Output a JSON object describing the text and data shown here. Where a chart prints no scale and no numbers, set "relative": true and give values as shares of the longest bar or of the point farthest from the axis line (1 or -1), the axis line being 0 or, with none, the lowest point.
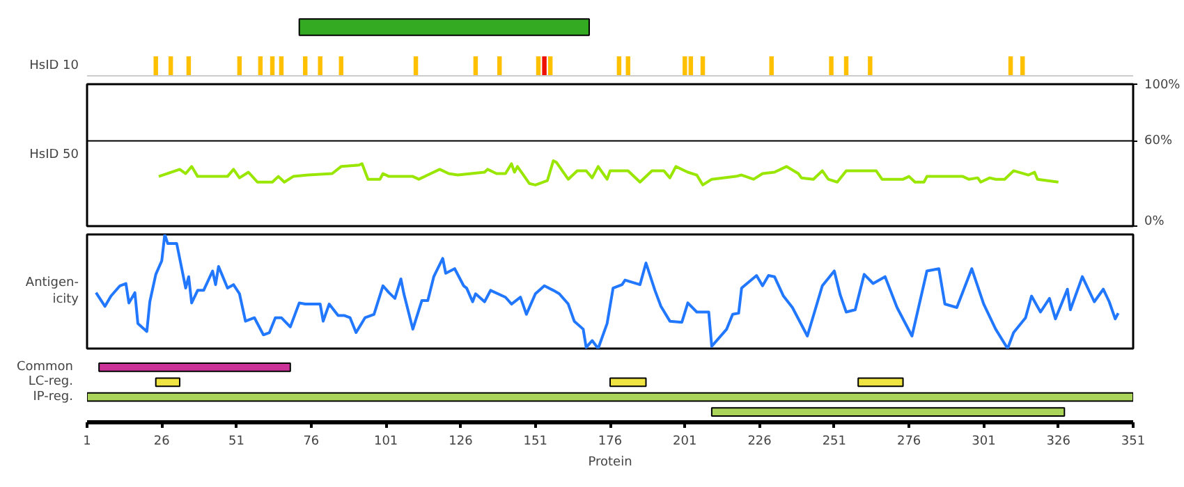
{
  "chart_data": [
    {
      "type": "bar",
      "orientation": "horizontal",
      "categories": [
        null
      ],
      "base": [
        72
      ],
      "values": [
        97
      ],
      "color": "#33aa22",
      "xlim": [
        1,
        351
      ],
      "tick_labels": false
    },
    {
      "type": "bar",
      "ylabel": "HsID 10",
      "relative": true,
      "xlim": [
        1,
        351
      ],
      "tick_labels": false,
      "x": [
        24,
        29,
        35,
        52,
        59,
        63,
        66,
        74,
        79,
        86,
        111,
        131,
        139,
        152,
        154,
        156,
        179,
        182,
        201,
        203,
        207,
        230,
        250,
        255,
        263,
        310,
        314
      ],
      "values": [
        1,
        1,
        1,
        1,
        1,
        1,
        1,
        1,
        1,
        1,
        1,
        1,
        1,
        1,
        1,
        1,
        1,
        1,
        1,
        1,
        1,
        1,
        1,
        1,
        1,
        1,
        1
      ],
      "colors": [
        "#ffc000",
        "#ffc000",
        "#ffc000",
        "#ffc000",
        "#ffc000",
        "#ffc000",
        "#ffc000",
        "#ffc000",
        "#ffc000",
        "#ffc000",
        "#ffc000",
        "#ffc000",
        "#ffc000",
        "#ffc000",
        "#ee1100",
        "#ffc000",
        "#ffc000",
        "#ffc000",
        "#ffc000",
        "#ffc000",
        "#ffc000",
        "#ffc000",
        "#ffc000",
        "#ffc000",
        "#ffc000",
        "#ffc000",
        "#ffc000"
      ]
    },
    {
      "type": "line",
      "ylabel": "HsID 50",
      "xlim": [
        1,
        351
      ],
      "ylim": [
        0,
        100
      ],
      "yticks": [
        {
          "value": 0,
          "label": "0%"
        },
        {
          "value": 60,
          "label": "60%"
        },
        {
          "value": 100,
          "label": "100%"
        }
      ],
      "tick_labels": "y",
      "ref_lines": [
        {
          "axis": "y",
          "value": 60,
          "color": "#000000"
        }
      ],
      "series": [
        {
          "color": "#99e600",
          "x": [
            25,
            32,
            34,
            36,
            38,
            48,
            50,
            52,
            55,
            58,
            63,
            65,
            67,
            70,
            75,
            83,
            86,
            92,
            93,
            95,
            99,
            100,
            102,
            110,
            112,
            115,
            119,
            122,
            125,
            134,
            135,
            138,
            141,
            143,
            144,
            145,
            149,
            151,
            155,
            157,
            158,
            162,
            165,
            168,
            170,
            172,
            175,
            176,
            182,
            186,
            190,
            194,
            196,
            198,
            202,
            205,
            207,
            210,
            218,
            220,
            224,
            227,
            231,
            235,
            239,
            240,
            244,
            247,
            249,
            252,
            255,
            265,
            267,
            274,
            276,
            278,
            281,
            282,
            294,
            296,
            299,
            300,
            303,
            305,
            308,
            311,
            316,
            318,
            319,
            326
          ],
          "values": [
            35,
            40,
            37,
            42,
            35,
            35,
            40,
            34,
            38,
            31,
            31,
            35,
            31,
            35,
            36,
            37,
            42,
            43,
            44,
            33,
            33,
            37,
            35,
            35,
            33,
            36,
            40,
            37,
            36,
            38,
            40,
            37,
            37,
            44,
            38,
            42,
            30,
            29,
            32,
            46,
            45,
            33,
            39,
            39,
            34,
            42,
            33,
            39,
            39,
            31,
            39,
            39,
            34,
            42,
            38,
            36,
            29,
            33,
            35,
            36,
            33,
            37,
            38,
            42,
            37,
            34,
            33,
            39,
            33,
            31,
            39,
            39,
            33,
            33,
            35,
            31,
            31,
            35,
            35,
            33,
            34,
            31,
            34,
            33,
            33,
            39,
            36,
            38,
            33,
            31
          ]
        }
      ]
    },
    {
      "type": "line",
      "ylabel": "Antigen-\nicity",
      "relative": true,
      "xlim": [
        1,
        351
      ],
      "tick_labels": false,
      "series": [
        {
          "color": "#2277ff",
          "x": [
            4,
            7,
            9,
            12,
            14,
            15,
            17,
            18,
            21,
            22,
            24,
            26,
            27,
            28,
            31,
            34,
            35,
            36,
            38,
            40,
            43,
            44,
            45,
            48,
            50,
            52,
            54,
            57,
            60,
            62,
            64,
            66,
            69,
            72,
            74,
            79,
            80,
            82,
            85,
            87,
            89,
            91,
            94,
            97,
            100,
            102,
            104,
            106,
            107,
            110,
            113,
            115,
            117,
            120,
            121,
            124,
            127,
            128,
            130,
            131,
            134,
            136,
            141,
            143,
            146,
            148,
            151,
            154,
            157,
            159,
            162,
            164,
            167,
            168,
            170,
            172,
            175,
            177,
            180,
            181,
            186,
            188,
            191,
            193,
            196,
            200,
            202,
            205,
            209,
            210,
            215,
            217,
            219,
            220,
            225,
            227,
            229,
            231,
            234,
            237,
            242,
            247,
            251,
            253,
            255,
            258,
            261,
            264,
            268,
            272,
            277,
            282,
            286,
            288,
            292,
            297,
            301,
            305,
            309,
            311,
            315,
            317,
            320,
            323,
            325,
            329,
            330,
            334,
            338,
            341,
            343,
            345,
            346
          ],
          "values": [
            0.49,
            0.37,
            0.46,
            0.55,
            0.57,
            0.4,
            0.49,
            0.22,
            0.15,
            0.41,
            0.65,
            0.77,
            1.0,
            0.92,
            0.92,
            0.53,
            0.63,
            0.4,
            0.51,
            0.51,
            0.68,
            0.56,
            0.72,
            0.53,
            0.56,
            0.48,
            0.24,
            0.27,
            0.12,
            0.14,
            0.27,
            0.27,
            0.19,
            0.4,
            0.39,
            0.39,
            0.24,
            0.39,
            0.29,
            0.29,
            0.27,
            0.14,
            0.27,
            0.3,
            0.55,
            0.49,
            0.44,
            0.61,
            0.48,
            0.17,
            0.42,
            0.42,
            0.63,
            0.79,
            0.66,
            0.7,
            0.55,
            0.53,
            0.41,
            0.48,
            0.41,
            0.51,
            0.45,
            0.39,
            0.45,
            0.3,
            0.48,
            0.55,
            0.51,
            0.48,
            0.39,
            0.24,
            0.17,
            0.01,
            0.07,
            0.0,
            0.22,
            0.53,
            0.56,
            0.6,
            0.56,
            0.75,
            0.51,
            0.37,
            0.24,
            0.23,
            0.4,
            0.32,
            0.32,
            0.02,
            0.17,
            0.3,
            0.31,
            0.53,
            0.64,
            0.55,
            0.64,
            0.63,
            0.46,
            0.36,
            0.11,
            0.55,
            0.68,
            0.47,
            0.32,
            0.34,
            0.65,
            0.57,
            0.63,
            0.36,
            0.11,
            0.68,
            0.7,
            0.39,
            0.36,
            0.7,
            0.39,
            0.17,
            0.0,
            0.14,
            0.27,
            0.46,
            0.32,
            0.44,
            0.26,
            0.52,
            0.34,
            0.63,
            0.41,
            0.52,
            0.41,
            0.26,
            0.31
          ]
        }
      ]
    },
    {
      "type": "bar",
      "orientation": "horizontal",
      "categories": [
        "Common",
        "LC-reg.",
        "IP-reg.",
        null
      ],
      "xlabel": "Protein",
      "xlim": [
        1,
        351
      ],
      "xticks": [
        1,
        26,
        51,
        76,
        101,
        126,
        151,
        176,
        201,
        226,
        251,
        276,
        301,
        326,
        351
      ],
      "series": [
        {
          "color": "#cc3399",
          "base": [
            5,
            null,
            null,
            null
          ],
          "values": [
            64,
            null,
            null,
            null
          ]
        },
        {
          "color": "#f0e442",
          "base": [
            null,
            24,
            null,
            null
          ],
          "values": [
            null,
            8,
            null,
            null
          ]
        },
        {
          "color": "#f0e442",
          "base": [
            null,
            176,
            null,
            null
          ],
          "values": [
            null,
            12,
            null,
            null
          ]
        },
        {
          "color": "#f0e442",
          "base": [
            null,
            259,
            null,
            null
          ],
          "values": [
            null,
            15,
            null,
            null
          ]
        },
        {
          "color": "#aad45a",
          "base": [
            null,
            null,
            1,
            210
          ],
          "values": [
            null,
            null,
            350,
            118
          ]
        }
      ]
    }
  ]
}
